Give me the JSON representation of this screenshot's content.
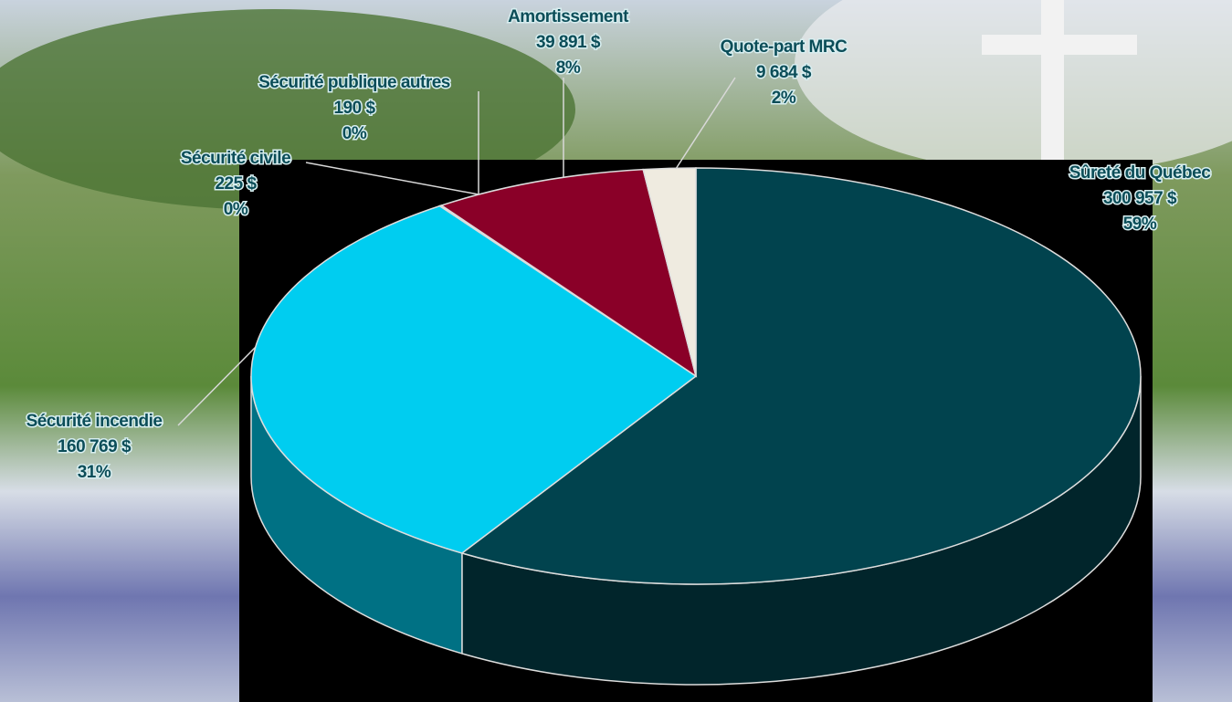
{
  "chart_data": {
    "type": "pie",
    "categories": [
      "Sûreté du Québec",
      "Sécurité incendie",
      "Sécurité civile",
      "Sécurité publique autres",
      "Amortissement",
      "Quote-part MRC"
    ],
    "values": [
      300957,
      160769,
      225,
      190,
      39891,
      9684
    ],
    "value_labels": [
      "300 957  $",
      "160 769  $",
      "225  $",
      "190  $",
      "39 891  $",
      "9 684  $"
    ],
    "percents": [
      59,
      31,
      0,
      0,
      8,
      2
    ],
    "percent_labels": [
      "59%",
      "31%",
      "0%",
      "0%",
      "8%",
      "2%"
    ],
    "colors": [
      "#01434e",
      "#00cdf0",
      "#6a9fb0",
      "#3d6f80",
      "#8a0028",
      "#efebe0"
    ]
  }
}
